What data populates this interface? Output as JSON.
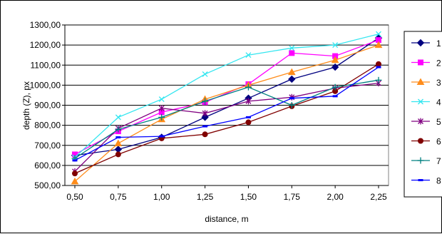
{
  "chart_data": {
    "type": "line",
    "title": "",
    "xlabel": "distance, m",
    "ylabel": "depth (Z), px",
    "x": [
      0.5,
      0.75,
      1.0,
      1.25,
      1.5,
      1.75,
      2.0,
      2.25
    ],
    "x_tick_labels": [
      "0,50",
      "0,75",
      "1,00",
      "1,25",
      "1,50",
      "1,75",
      "2,00",
      "2,25"
    ],
    "ylim": [
      500,
      1300
    ],
    "y_tick_values": [
      500,
      600,
      700,
      800,
      900,
      1000,
      1100,
      1200,
      1300
    ],
    "y_tick_labels": [
      "500,00",
      "600,00",
      "700,00",
      "800,00",
      "900,00",
      "1000,00",
      "1100,00",
      "1200,00",
      "1300,00"
    ],
    "grid": "horizontal",
    "legend_position": "right",
    "series": [
      {
        "name": "1",
        "color": "#000080",
        "marker": "diamond",
        "values": [
          650,
          680,
          740,
          840,
          935,
          1030,
          1090,
          1235
        ]
      },
      {
        "name": "2",
        "color": "#ff00ff",
        "marker": "square",
        "values": [
          655,
          770,
          865,
          915,
          1005,
          1160,
          1145,
          1225
        ]
      },
      {
        "name": "3",
        "color": "#ff8c1a",
        "marker": "triangle",
        "values": [
          520,
          710,
          830,
          930,
          1000,
          1065,
          1125,
          1200
        ]
      },
      {
        "name": "4",
        "color": "#33e6f0",
        "marker": "x",
        "values": [
          640,
          840,
          930,
          1055,
          1150,
          1185,
          1200,
          1255
        ]
      },
      {
        "name": "5",
        "color": "#800080",
        "marker": "star",
        "values": [
          570,
          785,
          885,
          860,
          920,
          940,
          985,
          1010
        ]
      },
      {
        "name": "6",
        "color": "#800000",
        "marker": "circle",
        "values": [
          560,
          655,
          735,
          755,
          815,
          895,
          970,
          1105
        ]
      },
      {
        "name": "7",
        "color": "#008080",
        "marker": "plus",
        "values": [
          635,
          780,
          840,
          920,
          990,
          900,
          990,
          1025
        ]
      },
      {
        "name": "8",
        "color": "#0000ff",
        "marker": "dash",
        "values": [
          625,
          740,
          745,
          795,
          840,
          935,
          945,
          1090
        ]
      }
    ]
  }
}
